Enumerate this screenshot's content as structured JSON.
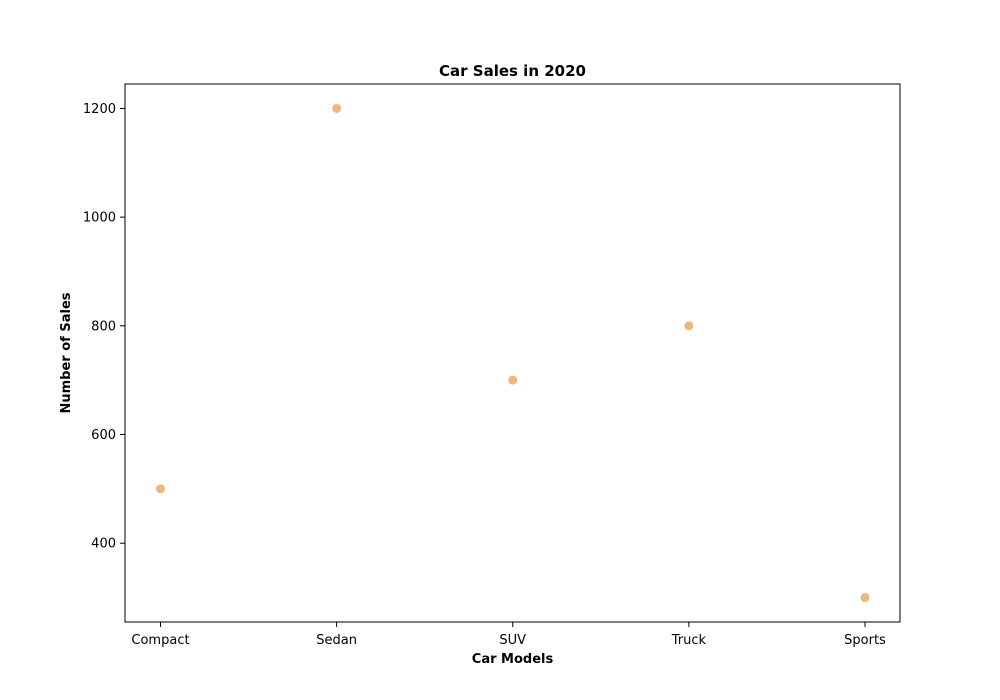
{
  "chart_data": {
    "type": "scatter",
    "title": "Car Sales in 2020",
    "xlabel": "Car Models",
    "ylabel": "Number of Sales",
    "categories": [
      "Compact",
      "Sedan",
      "SUV",
      "Truck",
      "Sports"
    ],
    "series": [
      {
        "values": [
          500,
          1200,
          700,
          800,
          300
        ],
        "color": "#f0b77c"
      }
    ],
    "yticks": [
      400,
      600,
      800,
      1000,
      1200
    ],
    "ylim": [
      255,
      1245
    ],
    "grid": false,
    "legend": null
  }
}
